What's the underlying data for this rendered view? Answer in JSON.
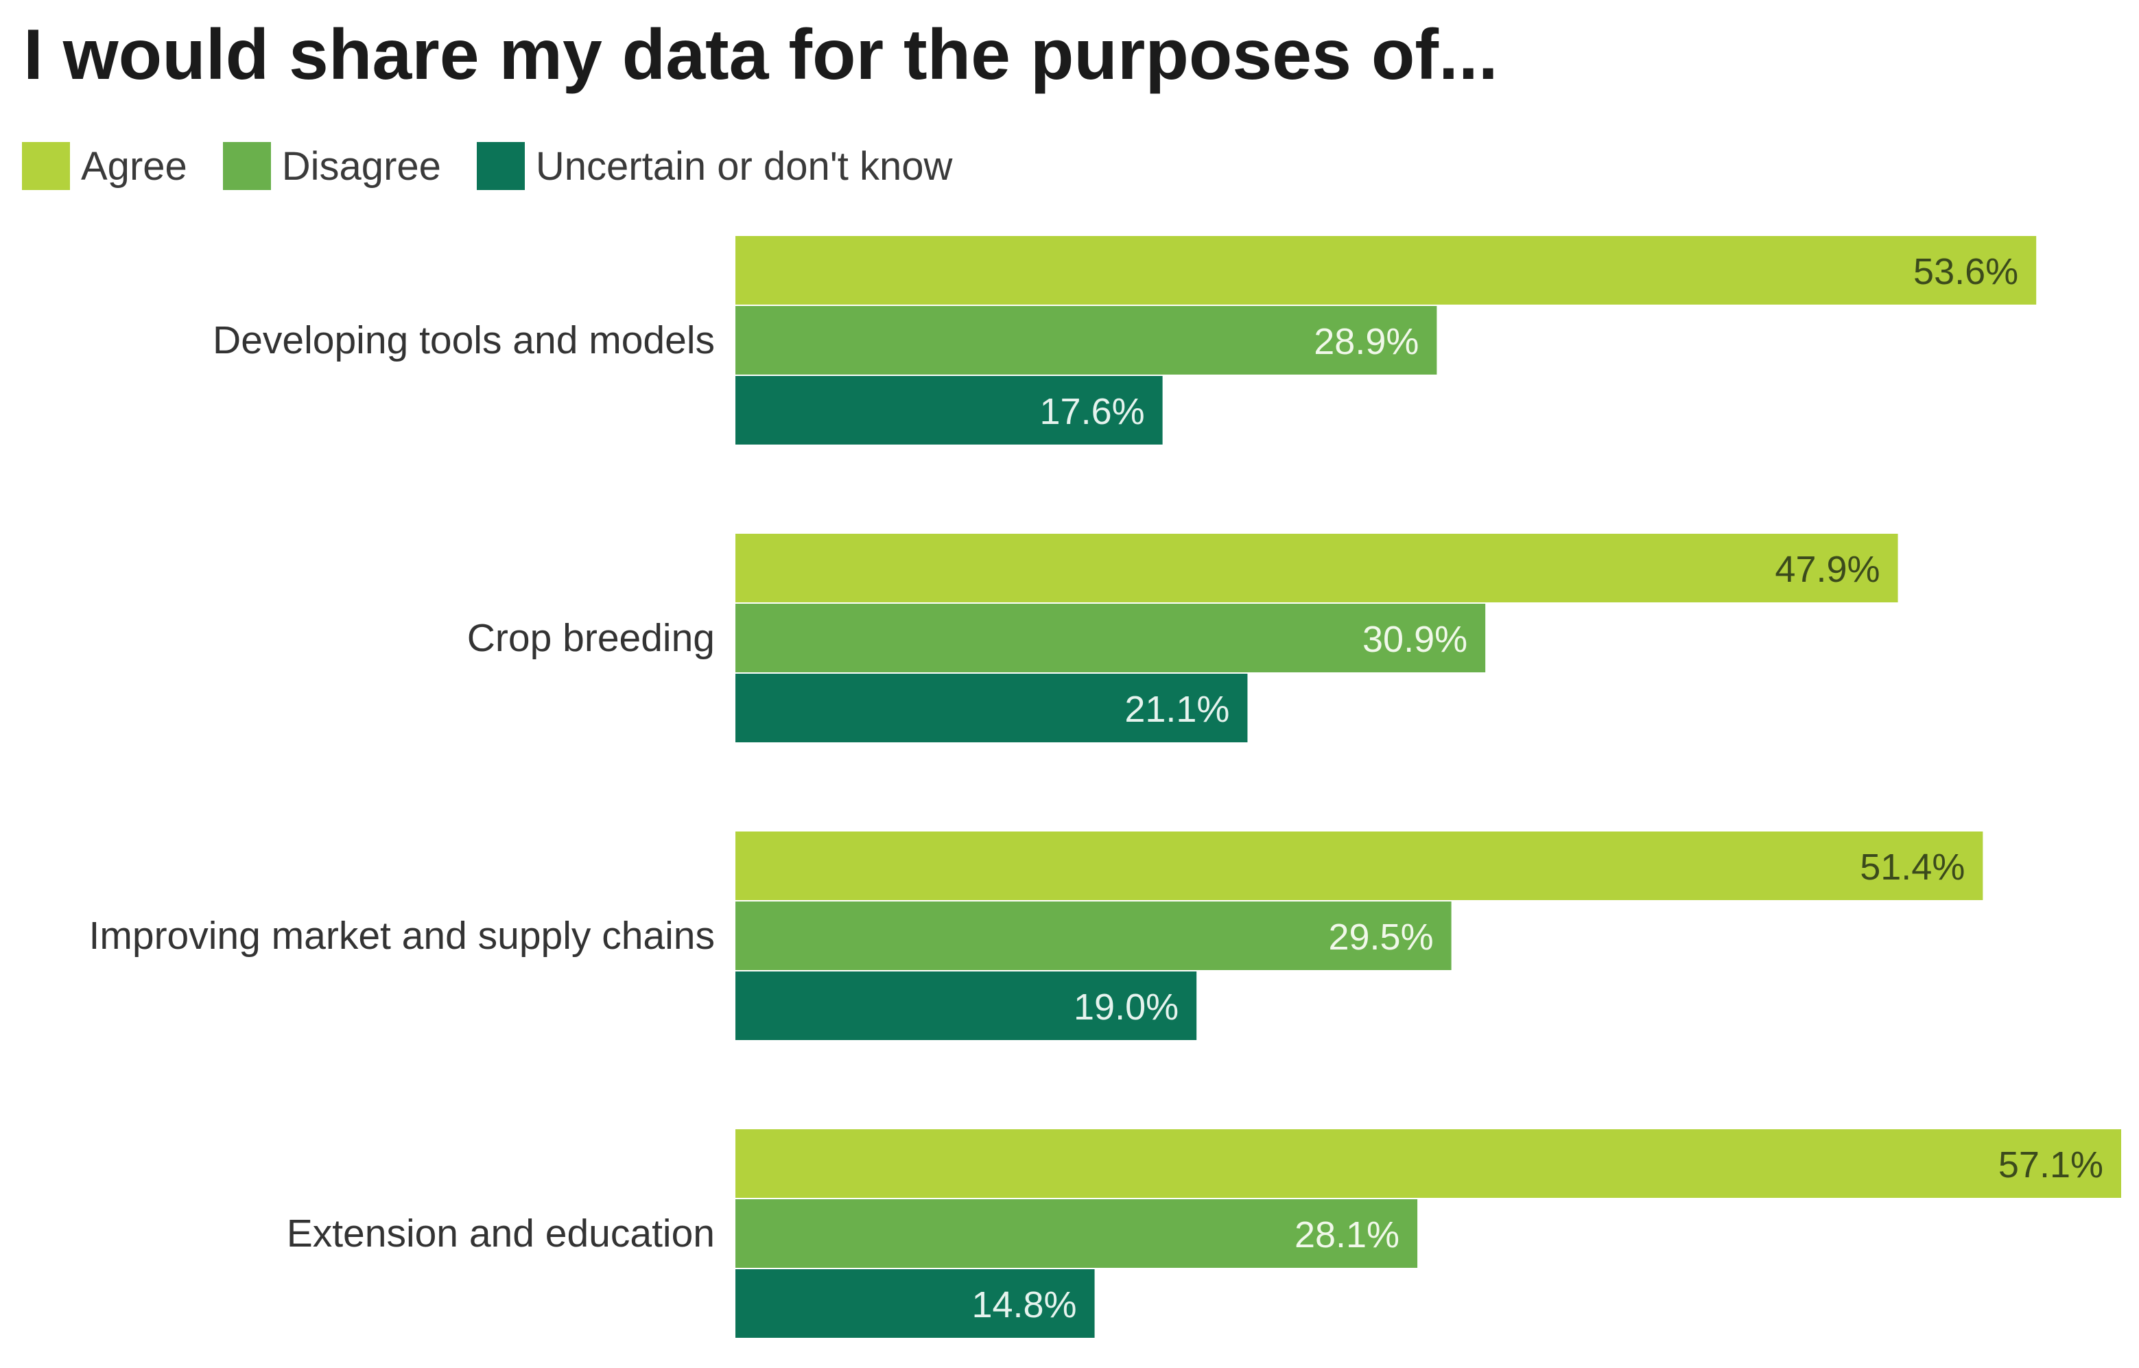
{
  "chart_data": {
    "type": "bar",
    "orientation": "horizontal",
    "title": "I would share my data for the purposes of...",
    "xlabel": "",
    "ylabel": "",
    "categories": [
      "Developing tools and models",
      "Crop breeding",
      "Improving market and supply chains",
      "Extension and education"
    ],
    "series": [
      {
        "name": "Agree",
        "color": "#b3d23c",
        "label_color": "#3b4a1c",
        "values": [
          53.6,
          47.9,
          51.4,
          57.1
        ],
        "labels": [
          "53.6%",
          "47.9%",
          "51.4%",
          "57.1%"
        ]
      },
      {
        "name": "Disagree",
        "color": "#6ab04c",
        "label_color": "#f1f8ea",
        "values": [
          28.9,
          30.9,
          29.5,
          28.1
        ],
        "labels": [
          "28.9%",
          "30.9%",
          "29.5%",
          "28.1%"
        ]
      },
      {
        "name": "Uncertain or don't know",
        "color": "#0c7457",
        "label_color": "#e6f3ee",
        "values": [
          17.6,
          21.1,
          19.0,
          14.8
        ],
        "labels": [
          "17.6%",
          "21.1%",
          "19.0%",
          "14.8%"
        ]
      }
    ],
    "xlim": [
      0,
      57.1
    ],
    "legend_position": "top-left",
    "grid": false
  }
}
